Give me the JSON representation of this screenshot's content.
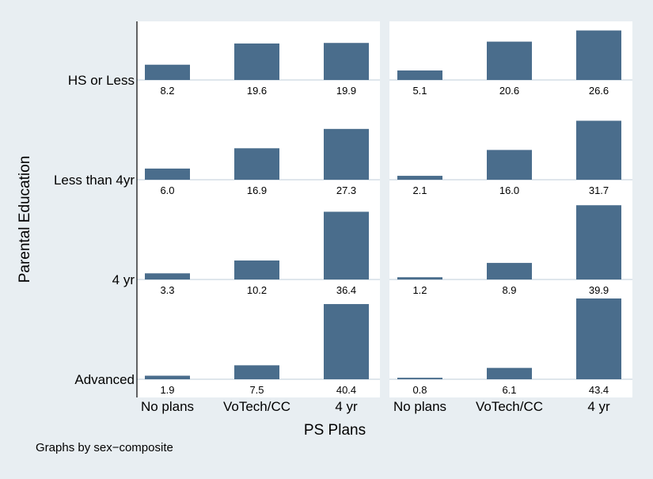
{
  "chart_data": {
    "type": "bar",
    "by_label": "Graphs by sex−composite",
    "xlabel": "PS Plans",
    "ylabel": "Parental Education",
    "categories": [
      "No plans",
      "VoTech/CC",
      "4 yr"
    ],
    "rows": [
      "HS or Less",
      "Less than 4yr",
      "4 yr",
      "Advanced"
    ],
    "ylim": [
      0,
      43.4
    ],
    "bar_color": "#4a6d8c",
    "panels": [
      {
        "values": [
          [
            8.2,
            19.6,
            19.9
          ],
          [
            6.0,
            16.9,
            27.3
          ],
          [
            3.3,
            10.2,
            36.4
          ],
          [
            1.9,
            7.5,
            40.4
          ]
        ],
        "labels": [
          [
            "8.2",
            "19.6",
            "19.9"
          ],
          [
            "6.0",
            "16.9",
            "27.3"
          ],
          [
            "3.3",
            "10.2",
            "36.4"
          ],
          [
            "1.9",
            "7.5",
            "40.4"
          ]
        ]
      },
      {
        "values": [
          [
            5.1,
            20.6,
            26.6
          ],
          [
            2.1,
            16.0,
            31.7
          ],
          [
            1.2,
            8.9,
            39.9
          ],
          [
            0.8,
            6.1,
            43.4
          ]
        ],
        "labels": [
          [
            "5.1",
            "20.6",
            "26.6"
          ],
          [
            "2.1",
            "16.0",
            "31.7"
          ],
          [
            "1.2",
            "8.9",
            "39.9"
          ],
          [
            "0.8",
            "6.1",
            "43.4"
          ]
        ]
      }
    ]
  }
}
